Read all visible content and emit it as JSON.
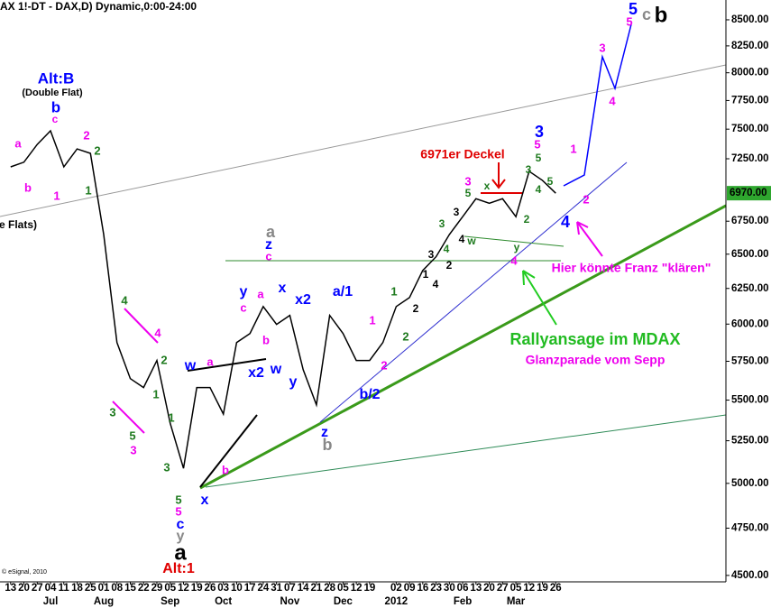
{
  "chart_data": {
    "type": "line",
    "title": "AX 1!-DT - DAX,D) Dynamic,0:00-24:00",
    "x": [
      0,
      1,
      2,
      3,
      4,
      5,
      6,
      7,
      8,
      9,
      10,
      11,
      12,
      13,
      14,
      15,
      16,
      17,
      18,
      19,
      20,
      21,
      22,
      23,
      24,
      25,
      26,
      27,
      28,
      29,
      30,
      31,
      32,
      33,
      34,
      35,
      36,
      37,
      38,
      39,
      40,
      41
    ],
    "values": [
      7183,
      7222,
      7370,
      7486,
      7183,
      7332,
      7295,
      6648,
      5875,
      5637,
      5580,
      5755,
      5357,
      5087,
      5580,
      5580,
      5413,
      5875,
      5936,
      6122,
      5998,
      6060,
      5695,
      5470,
      6060,
      5936,
      5755,
      5755,
      5875,
      6122,
      6185,
      6380,
      6481,
      6648,
      6785,
      6926,
      6890,
      6926,
      6785,
      7147,
      7073,
      6970
    ],
    "color": "#000000",
    "log_scale_y": true,
    "xlim": [
      -0.8,
      53.8
    ],
    "ylim": [
      4467,
      8695
    ],
    "yticks": [
      {
        "value": 4500,
        "label": "4500.00"
      },
      {
        "value": 4750,
        "label": "4750.00"
      },
      {
        "value": 5000,
        "label": "5000.00"
      },
      {
        "value": 5250,
        "label": "5250.00"
      },
      {
        "value": 5500,
        "label": "5500.00"
      },
      {
        "value": 5750,
        "label": "5750.00"
      },
      {
        "value": 6000,
        "label": "6000.00"
      },
      {
        "value": 6250,
        "label": "6250.00"
      },
      {
        "value": 6500,
        "label": "6500.00"
      },
      {
        "value": 6750,
        "label": "6750.00"
      },
      {
        "value": 7250,
        "label": "7250.00"
      },
      {
        "value": 7500,
        "label": "7500.00"
      },
      {
        "value": 7750,
        "label": "7750.00"
      },
      {
        "value": 8000,
        "label": "8000.00"
      },
      {
        "value": 8250,
        "label": "8250.00"
      },
      {
        "value": 8500,
        "label": "8500.00"
      }
    ],
    "xticks": [
      {
        "value": 0,
        "label": "13"
      },
      {
        "value": 1,
        "label": "20"
      },
      {
        "value": 2,
        "label": "27"
      },
      {
        "value": 3,
        "label": "04"
      },
      {
        "value": 4,
        "label": "11"
      },
      {
        "value": 5,
        "label": "18"
      },
      {
        "value": 6,
        "label": "25"
      },
      {
        "value": 7,
        "label": "01"
      },
      {
        "value": 8,
        "label": "08"
      },
      {
        "value": 9,
        "label": "15"
      },
      {
        "value": 10,
        "label": "22"
      },
      {
        "value": 11,
        "label": "29"
      },
      {
        "value": 12,
        "label": "05"
      },
      {
        "value": 13,
        "label": "12"
      },
      {
        "value": 14,
        "label": "19"
      },
      {
        "value": 15,
        "label": "26"
      },
      {
        "value": 16,
        "label": "03"
      },
      {
        "value": 17,
        "label": "10"
      },
      {
        "value": 18,
        "label": "17"
      },
      {
        "value": 19,
        "label": "24"
      },
      {
        "value": 20,
        "label": "31"
      },
      {
        "value": 21,
        "label": "07"
      },
      {
        "value": 22,
        "label": "14"
      },
      {
        "value": 23,
        "label": "21"
      },
      {
        "value": 24,
        "label": "28"
      },
      {
        "value": 25,
        "label": "05"
      },
      {
        "value": 26,
        "label": "12"
      },
      {
        "value": 27,
        "label": "19"
      },
      {
        "value": 29,
        "label": "02"
      },
      {
        "value": 30,
        "label": "09"
      },
      {
        "value": 31,
        "label": "16"
      },
      {
        "value": 32,
        "label": "23"
      },
      {
        "value": 33,
        "label": "30"
      },
      {
        "value": 34,
        "label": "06"
      },
      {
        "value": 35,
        "label": "13"
      },
      {
        "value": 36,
        "label": "20"
      },
      {
        "value": 37,
        "label": "27"
      },
      {
        "value": 38,
        "label": "05"
      },
      {
        "value": 39,
        "label": "12"
      },
      {
        "value": 40,
        "label": "19"
      },
      {
        "value": 41,
        "label": "26"
      }
    ],
    "xticks_months": [
      {
        "value": 3,
        "label": "Jul"
      },
      {
        "value": 7,
        "label": "Aug"
      },
      {
        "value": 12,
        "label": "Sep"
      },
      {
        "value": 16,
        "label": "Oct"
      },
      {
        "value": 21,
        "label": "Nov"
      },
      {
        "value": 25,
        "label": "Dec"
      },
      {
        "value": 29,
        "label": "2012"
      },
      {
        "value": 34,
        "label": "Feb"
      },
      {
        "value": 38,
        "label": "Mar"
      }
    ],
    "last_price": {
      "value": 6970,
      "label": "6970.00"
    },
    "copyright": "© eSignal, 2010",
    "annotations": [
      {
        "text": "Alt:B",
        "color": "#0000ff"
      },
      {
        "text": "(Double Flat)",
        "color": "#000000"
      },
      {
        "text": "b",
        "color": "#0000ff"
      },
      {
        "text": "c",
        "color": "#ee00ee"
      },
      {
        "text": "a",
        "color": "#ee00ee"
      },
      {
        "text": "b",
        "color": "#ee00ee"
      },
      {
        "text": "1",
        "color": "#ee00ee"
      },
      {
        "text": "2",
        "color": "#ee00ee"
      },
      {
        "text": "2",
        "color": "#1e7a1e"
      },
      {
        "text": "1",
        "color": "#1e7a1e"
      },
      {
        "text": "e Flats)",
        "color": "#000000"
      },
      {
        "text": "4",
        "color": "#1e7a1e"
      },
      {
        "text": "4",
        "color": "#ee00ee"
      },
      {
        "text": "2",
        "color": "#1e7a1e"
      },
      {
        "text": "1",
        "color": "#1e7a1e"
      },
      {
        "text": "3",
        "color": "#1e7a1e"
      },
      {
        "text": "5",
        "color": "#1e7a1e"
      },
      {
        "text": "3",
        "color": "#ee00ee"
      },
      {
        "text": "3",
        "color": "#1e7a1e"
      },
      {
        "text": "w",
        "color": "#0000ff"
      },
      {
        "text": "a",
        "color": "#ee00ee"
      },
      {
        "text": "1",
        "color": "#1e7a1e"
      },
      {
        "text": "b",
        "color": "#ee00ee"
      },
      {
        "text": "x",
        "color": "#0000ff"
      },
      {
        "text": "5",
        "color": "#1e7a1e"
      },
      {
        "text": "5",
        "color": "#ee00ee"
      },
      {
        "text": "c",
        "color": "#0000ff"
      },
      {
        "text": "y",
        "color": "#888888"
      },
      {
        "text": "a",
        "color": "#000000"
      },
      {
        "text": "Alt:1",
        "color": "#e00000"
      },
      {
        "text": "a",
        "color": "#888888"
      },
      {
        "text": "z",
        "color": "#0000ff"
      },
      {
        "text": "c",
        "color": "#ee00ee"
      },
      {
        "text": "y",
        "color": "#0000ff"
      },
      {
        "text": "a",
        "color": "#ee00ee"
      },
      {
        "text": "c",
        "color": "#ee00ee"
      },
      {
        "text": "b",
        "color": "#ee00ee"
      },
      {
        "text": "x2",
        "color": "#0000ff"
      },
      {
        "text": "x",
        "color": "#0000ff"
      },
      {
        "text": "x2",
        "color": "#0000ff"
      },
      {
        "text": "w",
        "color": "#0000ff"
      },
      {
        "text": "y",
        "color": "#0000ff"
      },
      {
        "text": "a/1",
        "color": "#0000ff"
      },
      {
        "text": "1",
        "color": "#ee00ee"
      },
      {
        "text": "2",
        "color": "#ee00ee"
      },
      {
        "text": "b/2",
        "color": "#0000ff"
      },
      {
        "text": "z",
        "color": "#0000ff"
      },
      {
        "text": "b",
        "color": "#888888"
      },
      {
        "text": "1",
        "color": "#1e7a1e"
      },
      {
        "text": "2",
        "color": "#1e7a1e"
      },
      {
        "text": "3",
        "color": "#1e7a1e"
      },
      {
        "text": "3",
        "color": "#ee00ee"
      },
      {
        "text": "5",
        "color": "#1e7a1e"
      },
      {
        "text": "x",
        "color": "#1e7a1e"
      },
      {
        "text": "3",
        "color": "#000000"
      },
      {
        "text": "4",
        "color": "#000000"
      },
      {
        "text": "w",
        "color": "#1e7a1e"
      },
      {
        "text": "4",
        "color": "#1e7a1e"
      },
      {
        "text": "2",
        "color": "#000000"
      },
      {
        "text": "4",
        "color": "#000000"
      },
      {
        "text": "1",
        "color": "#000000"
      },
      {
        "text": "3",
        "color": "#000000"
      },
      {
        "text": "2",
        "color": "#000000"
      },
      {
        "text": "6971er Deckel",
        "color": "#e00000"
      },
      {
        "text": "3",
        "color": "#0000ff"
      },
      {
        "text": "5",
        "color": "#ee00ee"
      },
      {
        "text": "5",
        "color": "#1e7a1e"
      },
      {
        "text": "3",
        "color": "#1e7a1e"
      },
      {
        "text": "4",
        "color": "#1e7a1e"
      },
      {
        "text": "5",
        "color": "#1e7a1e"
      },
      {
        "text": "y",
        "color": "#1e7a1e"
      },
      {
        "text": "2",
        "color": "#1e7a1e"
      },
      {
        "text": "4",
        "color": "#ee00ee"
      },
      {
        "text": "1",
        "color": "#ee00ee"
      },
      {
        "text": "2",
        "color": "#ee00ee"
      },
      {
        "text": "4",
        "color": "#0000ff"
      },
      {
        "text": "3",
        "color": "#ee00ee"
      },
      {
        "text": "4",
        "color": "#ee00ee"
      },
      {
        "text": "5",
        "color": "#0000ff"
      },
      {
        "text": "5",
        "color": "#ee00ee"
      },
      {
        "text": "c",
        "color": "#888888"
      },
      {
        "text": "b",
        "color": "#000000"
      },
      {
        "text": "Hier könnte Franz \"klären\"",
        "color": "#ee00ee"
      },
      {
        "text": "Rallyansage im MDAX",
        "color": "#22bb22"
      },
      {
        "text": "Glanzparade vom Sepp",
        "color": "#ee00ee"
      }
    ]
  }
}
